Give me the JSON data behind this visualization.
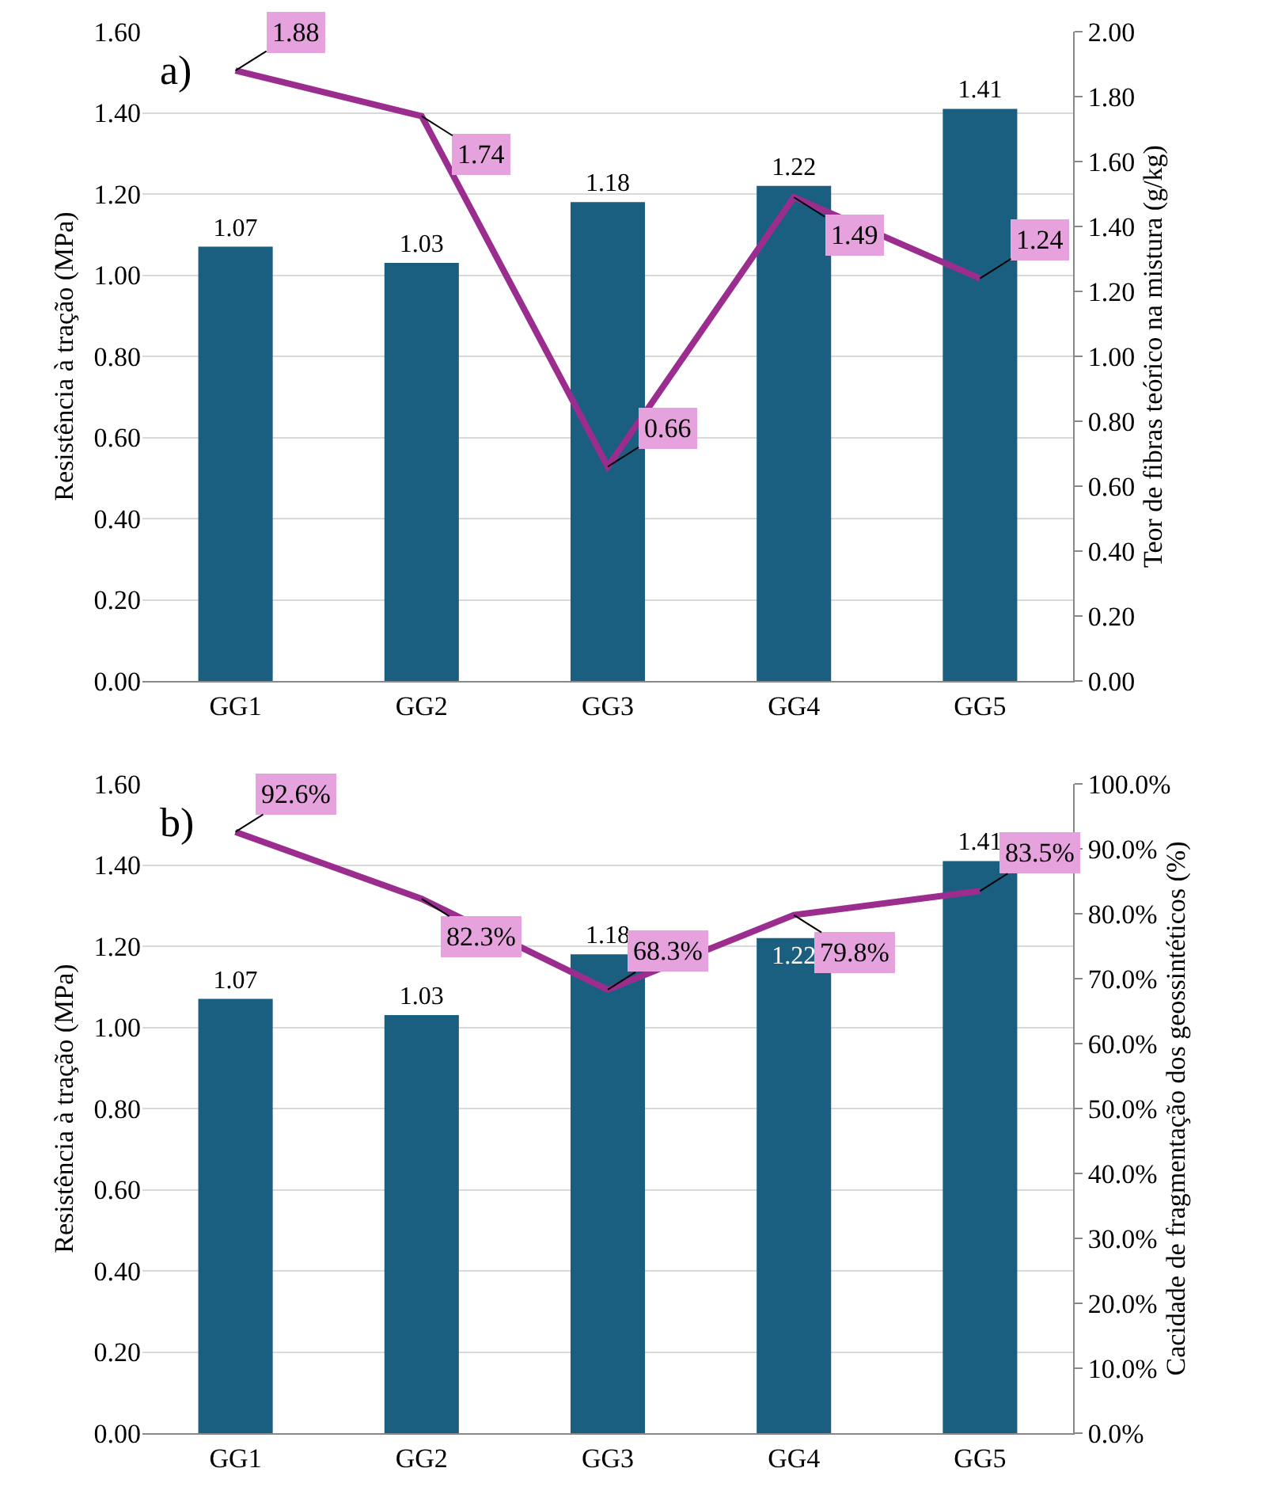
{
  "chart_data": [
    {
      "type": "bar",
      "categories": [
        "GG1",
        "GG2",
        "GG3",
        "GG4",
        "GG5"
      ],
      "ylabel": "Resistência à tração (MPa)",
      "y2label": "Teor de fibras teórico na mistura (g/kg)",
      "annotations": [
        "a)"
      ],
      "series": [
        {
          "color": "#1a5e80",
          "values": [
            1.07,
            1.03,
            1.18,
            1.22,
            1.41
          ]
        },
        {
          "type": "line",
          "axis": "y2",
          "color": "#9b2d8f",
          "values": [
            1.88,
            1.74,
            0.66,
            1.49,
            1.24
          ],
          "value_labels": [
            "1.88",
            "1.74",
            "0.66",
            "1.49",
            "1.24"
          ]
        }
      ],
      "ylim": [
        0,
        1.6
      ],
      "yticks": [
        {
          "value": 0,
          "label": "0.00"
        },
        {
          "value": 0.2,
          "label": "0.20"
        },
        {
          "value": 0.4,
          "label": "0.40"
        },
        {
          "value": 0.6,
          "label": "0.60"
        },
        {
          "value": 0.8,
          "label": "0.80"
        },
        {
          "value": 1,
          "label": "1.00"
        },
        {
          "value": 1.2,
          "label": "1.20"
        },
        {
          "value": 1.4,
          "label": "1.40"
        },
        {
          "value": 1.6,
          "label": "1.60"
        }
      ],
      "y2lim": [
        0,
        2
      ],
      "y2ticks": [
        {
          "value": 0,
          "label": "0.00"
        },
        {
          "value": 0.2,
          "label": "0.20"
        },
        {
          "value": 0.4,
          "label": "0.40"
        },
        {
          "value": 0.6,
          "label": "0.60"
        },
        {
          "value": 0.8,
          "label": "0.80"
        },
        {
          "value": 1,
          "label": "1.00"
        },
        {
          "value": 1.2,
          "label": "1.20"
        },
        {
          "value": 1.4,
          "label": "1.40"
        },
        {
          "value": 1.6,
          "label": "1.60"
        },
        {
          "value": 1.8,
          "label": "1.80"
        },
        {
          "value": 2,
          "label": "2.00"
        }
      ],
      "grid": "y",
      "legend": false,
      "data_labels": true,
      "marker": "none",
      "line_style": "solid"
    },
    {
      "type": "bar",
      "categories": [
        "GG1",
        "GG2",
        "GG3",
        "GG4",
        "GG5"
      ],
      "ylabel": "Resistência à tração (MPa)",
      "y2label": "Cacidade de fragmentação dos geossintéticos (%)",
      "annotations": [
        "b)"
      ],
      "series": [
        {
          "color": "#1a5e80",
          "values": [
            1.07,
            1.03,
            1.18,
            1.22,
            1.41
          ]
        },
        {
          "type": "line",
          "axis": "y2",
          "color": "#9b2d8f",
          "values": [
            92.6,
            82.3,
            68.3,
            79.8,
            83.5
          ],
          "value_labels": [
            "92.6%",
            "82.3%",
            "68.3%",
            "79.8%",
            "83.5%"
          ]
        }
      ],
      "ylim": [
        0,
        1.6
      ],
      "yticks": [
        {
          "value": 0,
          "label": "0.00"
        },
        {
          "value": 0.2,
          "label": "0.20"
        },
        {
          "value": 0.4,
          "label": "0.40"
        },
        {
          "value": 0.6,
          "label": "0.60"
        },
        {
          "value": 0.8,
          "label": "0.80"
        },
        {
          "value": 1,
          "label": "1.00"
        },
        {
          "value": 1.2,
          "label": "1.20"
        },
        {
          "value": 1.4,
          "label": "1.40"
        },
        {
          "value": 1.6,
          "label": "1.60"
        }
      ],
      "y2lim": [
        0,
        100
      ],
      "y2ticks": [
        {
          "value": 0,
          "label": "0.0%"
        },
        {
          "value": 10,
          "label": "10.0%"
        },
        {
          "value": 20,
          "label": "20.0%"
        },
        {
          "value": 30,
          "label": "30.0%"
        },
        {
          "value": 40,
          "label": "40.0%"
        },
        {
          "value": 50,
          "label": "50.0%"
        },
        {
          "value": 60,
          "label": "60.0%"
        },
        {
          "value": 70,
          "label": "70.0%"
        },
        {
          "value": 80,
          "label": "80.0%"
        },
        {
          "value": 90,
          "label": "90.0%"
        },
        {
          "value": 100,
          "label": "100.0%"
        }
      ],
      "grid": "y",
      "legend": false,
      "data_labels": true,
      "marker": "none",
      "line_style": "solid"
    }
  ]
}
